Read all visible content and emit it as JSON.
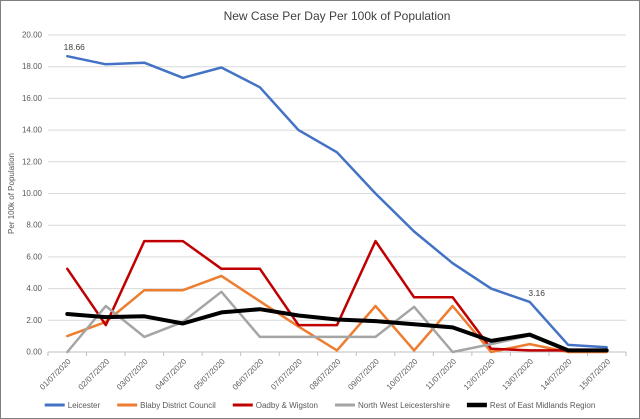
{
  "title": "New Case Per Day Per 100k of Population",
  "y_axis": {
    "label": "Per 100k of Population",
    "min": 0,
    "max": 20,
    "step": 2,
    "ticks": [
      "0.00",
      "2.00",
      "4.00",
      "6.00",
      "8.00",
      "10.00",
      "12.00",
      "14.00",
      "16.00",
      "18.00",
      "20.00"
    ]
  },
  "x_axis": {
    "categories": [
      "01/07/2020",
      "02/07/2020",
      "03/07/2020",
      "04/07/2020",
      "05/07/2020",
      "06/07/2020",
      "07/07/2020",
      "08/07/2020",
      "09/07/2020",
      "10/07/2020",
      "11/07/2020",
      "12/07/2020",
      "13/07/2020",
      "14/07/2020",
      "15/07/2020"
    ]
  },
  "annotations": [
    {
      "series": "Leicester",
      "index": 0,
      "label": "18.66"
    },
    {
      "series": "Leicester",
      "index": 12,
      "label": "3.16"
    }
  ],
  "colors": {
    "gridline": "#d9d9d9",
    "axis_line": "#bfbfbf",
    "tick_label": "#595959",
    "title_text": "#404040",
    "data_label": "#404040",
    "legend_text": "#595959"
  },
  "chart_data": {
    "type": "line",
    "x": [
      "01/07/2020",
      "02/07/2020",
      "03/07/2020",
      "04/07/2020",
      "05/07/2020",
      "06/07/2020",
      "07/07/2020",
      "08/07/2020",
      "09/07/2020",
      "10/07/2020",
      "11/07/2020",
      "12/07/2020",
      "13/07/2020",
      "14/07/2020",
      "15/07/2020"
    ],
    "series": [
      {
        "name": "Leicester",
        "color": "#4472c4",
        "width": 2.5,
        "values": [
          18.66,
          18.15,
          18.25,
          17.3,
          17.95,
          16.7,
          14.0,
          12.6,
          10.0,
          7.6,
          5.6,
          4.0,
          3.16,
          0.45,
          0.3
        ]
      },
      {
        "name": "Blaby District Council",
        "color": "#ed7d31",
        "width": 2.5,
        "values": [
          1.0,
          1.9,
          3.9,
          3.9,
          4.8,
          3.2,
          1.6,
          0.1,
          2.9,
          0.1,
          2.9,
          0.0,
          0.5,
          0.0,
          0.0
        ]
      },
      {
        "name": "Oadby & Wigston",
        "color": "#c00000",
        "width": 2.5,
        "values": [
          5.25,
          1.7,
          7.0,
          7.0,
          5.25,
          5.25,
          1.7,
          1.7,
          7.0,
          3.45,
          3.45,
          0.2,
          0.1,
          0.1,
          0.1
        ]
      },
      {
        "name": "North West Leicestershire",
        "color": "#a5a5a5",
        "width": 2.5,
        "values": [
          0.0,
          2.9,
          0.95,
          1.9,
          3.8,
          0.95,
          0.95,
          0.95,
          0.95,
          2.85,
          0.0,
          0.5,
          1.05,
          0.1,
          0.1
        ]
      },
      {
        "name": "Rest of East Midlands Region",
        "color": "#000000",
        "width": 4,
        "values": [
          2.4,
          2.2,
          2.25,
          1.8,
          2.5,
          2.7,
          2.3,
          2.05,
          1.95,
          1.75,
          1.55,
          0.7,
          1.1,
          0.1,
          0.1
        ]
      }
    ],
    "ylim": [
      0,
      20
    ],
    "grid": true,
    "legend_position": "bottom"
  }
}
